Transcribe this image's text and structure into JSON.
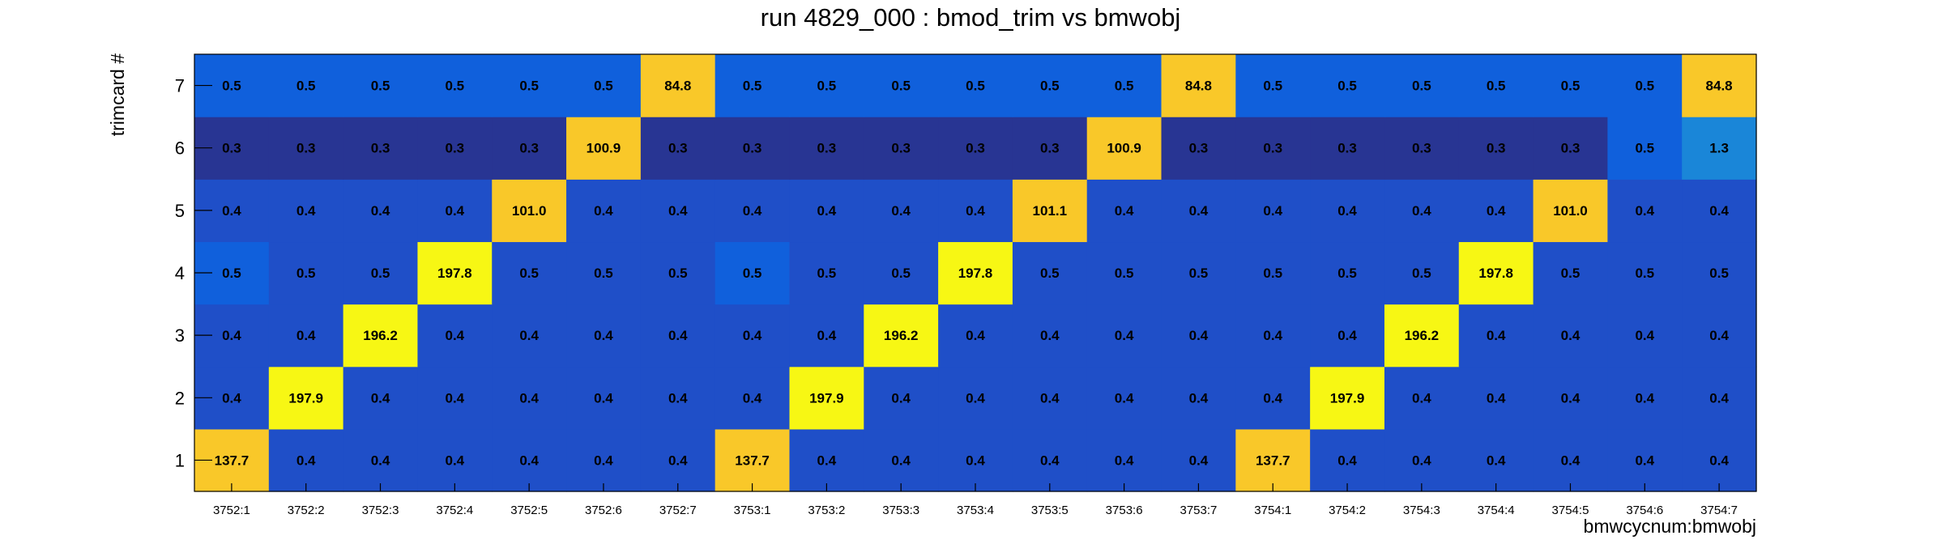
{
  "chart_data": {
    "type": "heatmap",
    "title": "run 4829_000 : bmod_trim vs bmwobj",
    "xlabel": "bmwcycnum:bmwobj",
    "ylabel": "trimcard #",
    "x_categories": [
      "3752:1",
      "3752:2",
      "3752:3",
      "3752:4",
      "3752:5",
      "3752:6",
      "3752:7",
      "3753:1",
      "3753:2",
      "3753:3",
      "3753:4",
      "3753:5",
      "3753:6",
      "3753:7",
      "3754:1",
      "3754:2",
      "3754:3",
      "3754:4",
      "3754:5",
      "3754:6",
      "3754:7"
    ],
    "y_categories": [
      "1",
      "2",
      "3",
      "4",
      "5",
      "6",
      "7"
    ],
    "values": [
      [
        137.7,
        0.4,
        0.4,
        0.4,
        0.4,
        0.4,
        0.4,
        137.7,
        0.4,
        0.4,
        0.4,
        0.4,
        0.4,
        0.4,
        137.7,
        0.4,
        0.4,
        0.4,
        0.4,
        0.4,
        0.4
      ],
      [
        0.4,
        197.9,
        0.4,
        0.4,
        0.4,
        0.4,
        0.4,
        0.4,
        197.9,
        0.4,
        0.4,
        0.4,
        0.4,
        0.4,
        0.4,
        197.9,
        0.4,
        0.4,
        0.4,
        0.4,
        0.4
      ],
      [
        0.4,
        0.4,
        196.2,
        0.4,
        0.4,
        0.4,
        0.4,
        0.4,
        0.4,
        196.2,
        0.4,
        0.4,
        0.4,
        0.4,
        0.4,
        0.4,
        196.2,
        0.4,
        0.4,
        0.4,
        0.4
      ],
      [
        0.5,
        0.5,
        0.5,
        197.8,
        0.5,
        0.5,
        0.5,
        0.5,
        0.5,
        0.5,
        197.8,
        0.5,
        0.5,
        0.5,
        0.5,
        0.5,
        0.5,
        197.8,
        0.5,
        0.5,
        0.5
      ],
      [
        0.4,
        0.4,
        0.4,
        0.4,
        101.0,
        0.4,
        0.4,
        0.4,
        0.4,
        0.4,
        0.4,
        101.1,
        0.4,
        0.4,
        0.4,
        0.4,
        0.4,
        0.4,
        101.0,
        0.4,
        0.4
      ],
      [
        0.3,
        0.3,
        0.3,
        0.3,
        0.3,
        100.9,
        0.3,
        0.3,
        0.3,
        0.3,
        0.3,
        0.3,
        100.9,
        0.3,
        0.3,
        0.3,
        0.3,
        0.3,
        0.3,
        0.5,
        1.3
      ],
      [
        0.5,
        0.5,
        0.5,
        0.5,
        0.5,
        0.5,
        84.8,
        0.5,
        0.5,
        0.5,
        0.5,
        0.5,
        0.5,
        84.8,
        0.5,
        0.5,
        0.5,
        0.5,
        0.5,
        0.5,
        84.8
      ]
    ],
    "value_format": "one decimal place",
    "color_scale": {
      "low": "#283593",
      "mid_low": "#1f4fc8",
      "mid": "#1060dc",
      "mid_high": "#1a86d8",
      "high_mid": "#f9c829",
      "high": "#f7f714"
    },
    "grid": false,
    "legend": "none"
  }
}
